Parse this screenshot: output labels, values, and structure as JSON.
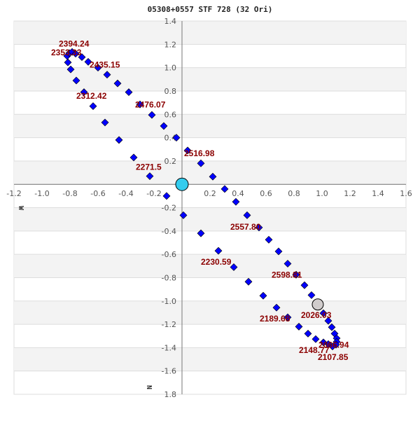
{
  "chart_data": {
    "type": "scatter",
    "title": "05308+0557 STF 728 (32 Ori)",
    "xlim": [
      -1.2,
      1.6
    ],
    "ylim": [
      -1.8,
      1.4
    ],
    "x_ticks": [
      "-1.2",
      "-1.0",
      "-0.8",
      "-0.6",
      "-0.4",
      "-0.2",
      "0.2",
      "0.4",
      "0.6",
      "0.8",
      "1.0",
      "1.2",
      "1.4",
      "1.6"
    ],
    "y_ticks": [
      "1.4",
      "1.2",
      "1.0",
      "0.8",
      "0.6",
      "0.4",
      "0.2",
      "-0.2",
      "-0.4",
      "-0.6",
      "-0.8",
      "-1.0",
      "-1.2",
      "-1.4",
      "-1.6",
      "1.8"
    ],
    "grid": true,
    "axis_direction_labels": {
      "west": "W",
      "north": "N"
    },
    "colors": {
      "points": "#0000ff",
      "labels": "#8b0000",
      "primary": "#33ccee",
      "companion_now": "#d0cccc",
      "band": "#f3f3f3"
    },
    "primary": {
      "x": 0,
      "y": 0
    },
    "current_position": {
      "x": 0.97,
      "y": -1.03
    },
    "points": [
      [
        -0.11,
        -0.1
      ],
      [
        -0.23,
        0.07
      ],
      [
        -0.345,
        0.23
      ],
      [
        -0.45,
        0.38
      ],
      [
        -0.55,
        0.53
      ],
      [
        -0.635,
        0.67
      ],
      [
        -0.7,
        0.79
      ],
      [
        -0.755,
        0.89
      ],
      [
        -0.795,
        0.985
      ],
      [
        -0.815,
        1.045
      ],
      [
        -0.82,
        1.1
      ],
      [
        -0.805,
        1.125
      ],
      [
        -0.785,
        1.135
      ],
      [
        -0.76,
        1.12
      ],
      [
        -0.715,
        1.09
      ],
      [
        -0.67,
        1.05
      ],
      [
        -0.6,
        1.0
      ],
      [
        -0.535,
        0.94
      ],
      [
        -0.46,
        0.865
      ],
      [
        -0.38,
        0.79
      ],
      [
        -0.3,
        0.685
      ],
      [
        -0.215,
        0.595
      ],
      [
        -0.13,
        0.5
      ],
      [
        -0.04,
        0.4
      ],
      [
        0.04,
        0.29
      ],
      [
        0.135,
        0.18
      ],
      [
        0.22,
        0.066
      ],
      [
        0.305,
        -0.04
      ],
      [
        0.385,
        -0.15
      ],
      [
        0.465,
        -0.265
      ],
      [
        0.55,
        -0.37
      ],
      [
        0.62,
        -0.475
      ],
      [
        0.69,
        -0.575
      ],
      [
        0.755,
        -0.68
      ],
      [
        0.815,
        -0.775
      ],
      [
        0.875,
        -0.865
      ],
      [
        0.925,
        -0.95
      ],
      [
        1.01,
        -1.105
      ],
      [
        1.045,
        -1.17
      ],
      [
        1.07,
        -1.225
      ],
      [
        1.09,
        -1.28
      ],
      [
        1.105,
        -1.32
      ],
      [
        1.105,
        -1.35
      ],
      [
        1.1,
        -1.375
      ],
      [
        1.075,
        -1.39
      ],
      [
        1.045,
        -1.37
      ],
      [
        1.01,
        -1.355
      ],
      [
        0.955,
        -1.327
      ],
      [
        0.9,
        -1.28
      ],
      [
        0.835,
        -1.22
      ],
      [
        0.755,
        -1.14
      ],
      [
        0.675,
        -1.057
      ],
      [
        0.58,
        -0.955
      ],
      [
        0.475,
        -0.835
      ],
      [
        0.37,
        -0.71
      ],
      [
        0.26,
        -0.57
      ],
      [
        0.135,
        -0.42
      ],
      [
        0.01,
        -0.265
      ]
    ],
    "annotations": [
      {
        "text": "2394.24",
        "x": -0.88,
        "y": 1.18
      },
      {
        "text": "2353.33",
        "x": -0.935,
        "y": 1.105
      },
      {
        "text": "2435.15",
        "x": -0.66,
        "y": 1.0
      },
      {
        "text": "2312.42",
        "x": -0.755,
        "y": 0.735
      },
      {
        "text": "2476.07",
        "x": -0.335,
        "y": 0.66
      },
      {
        "text": "2516.98",
        "x": 0.015,
        "y": 0.24
      },
      {
        "text": "2271.5",
        "x": -0.33,
        "y": 0.125
      },
      {
        "text": "2557.80",
        "x": 0.345,
        "y": -0.39
      },
      {
        "text": "2230.59",
        "x": 0.135,
        "y": -0.69
      },
      {
        "text": "2598.81",
        "x": 0.64,
        "y": -0.8
      },
      {
        "text": "2026.03",
        "x": 0.85,
        "y": -1.147
      },
      {
        "text": "2189.68",
        "x": 0.555,
        "y": -1.177
      },
      {
        "text": "2066.94",
        "x": 0.975,
        "y": -1.4
      },
      {
        "text": "2148.77",
        "x": 0.835,
        "y": -1.447
      },
      {
        "text": "2107.85",
        "x": 0.97,
        "y": -1.507
      }
    ]
  }
}
